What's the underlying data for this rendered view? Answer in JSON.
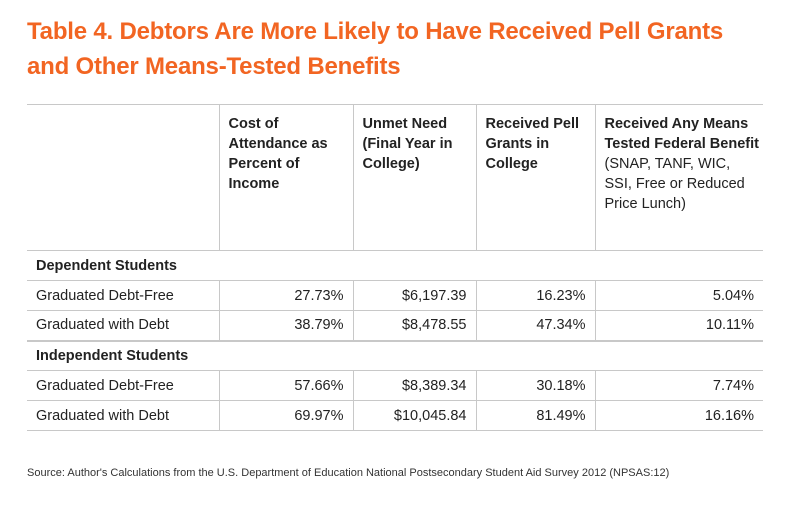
{
  "title_line1": "Table 4. Debtors Are More Likely to Have Received Pell Grants",
  "title_line2": "and Other Means-Tested Benefits",
  "columns": [
    {
      "label": ""
    },
    {
      "label": "Cost of Attendance as Percent of Income",
      "sub": ""
    },
    {
      "label": "Unmet Need (Final Year in College)",
      "sub": ""
    },
    {
      "label": "Received Pell Grants in College",
      "sub": ""
    },
    {
      "label": "Received Any Means Tested Federal Benefit",
      "sub": "(SNAP, TANF, WIC, SSI, Free or Reduced Price Lunch)"
    }
  ],
  "sections": [
    {
      "heading": "Dependent Students",
      "rows": [
        {
          "label": "Graduated Debt-Free",
          "cost": "27.73%",
          "unmet": "$6,197.39",
          "pell": "16.23%",
          "benefit": "5.04%"
        },
        {
          "label": "Graduated with Debt",
          "cost": "38.79%",
          "unmet": "$8,478.55",
          "pell": "47.34%",
          "benefit": "10.11%"
        }
      ]
    },
    {
      "heading": "Independent Students",
      "rows": [
        {
          "label": "Graduated Debt-Free",
          "cost": "57.66%",
          "unmet": "$8,389.34",
          "pell": "30.18%",
          "benefit": "7.74%"
        },
        {
          "label": "Graduated with Debt",
          "cost": "69.97%",
          "unmet": "$10,045.84",
          "pell": "81.49%",
          "benefit": "16.16%"
        }
      ]
    }
  ],
  "source": "Source:  Author's Calculations from the U.S. Department of Education National Postsecondary Student Aid Survey 2012 (NPSAS:12)",
  "colors": {
    "title": "#f26522",
    "rule": "#c8c8c8"
  }
}
